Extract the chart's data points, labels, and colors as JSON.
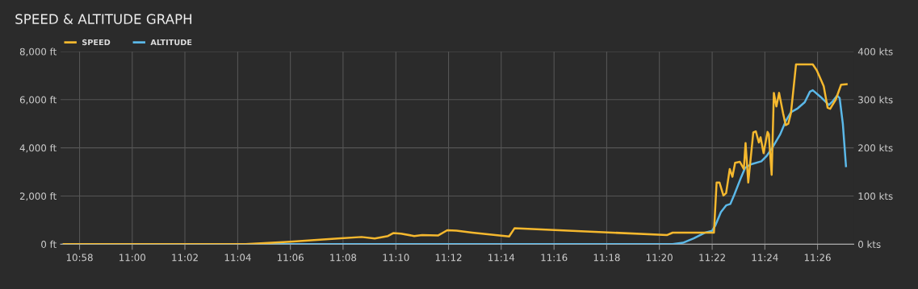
{
  "chart_data": {
    "type": "line",
    "title": "SPEED & ALTITUDE GRAPH",
    "legend": "top left",
    "grid": true,
    "xlim": [
      10.9547,
      11.4562
    ],
    "xticks": [
      {
        "value": 10.9667,
        "label": "10:58"
      },
      {
        "value": 11.0,
        "label": "11:00"
      },
      {
        "value": 11.0333,
        "label": "11:02"
      },
      {
        "value": 11.0667,
        "label": "11:04"
      },
      {
        "value": 11.1,
        "label": "11:06"
      },
      {
        "value": 11.1333,
        "label": "11:08"
      },
      {
        "value": 11.1667,
        "label": "11:10"
      },
      {
        "value": 11.2,
        "label": "11:12"
      },
      {
        "value": 11.2333,
        "label": "11:14"
      },
      {
        "value": 11.2667,
        "label": "11:16"
      },
      {
        "value": 11.3,
        "label": "11:18"
      },
      {
        "value": 11.3333,
        "label": "11:20"
      },
      {
        "value": 11.3667,
        "label": "11:22"
      },
      {
        "value": 11.4,
        "label": "11:24"
      },
      {
        "value": 11.4333,
        "label": "11:26"
      }
    ],
    "ylim": [
      0,
      8000
    ],
    "yticks": [
      {
        "value": 0,
        "label": "0 ft"
      },
      {
        "value": 2000,
        "label": "2,000 ft"
      },
      {
        "value": 4000,
        "label": "4,000 ft"
      },
      {
        "value": 6000,
        "label": "6,000 ft"
      },
      {
        "value": 8000,
        "label": "8,000 ft"
      }
    ],
    "y2lim": [
      0,
      400
    ],
    "y2ticks": [
      {
        "value": 0,
        "label": "0 kts"
      },
      {
        "value": 100,
        "label": "100 kts"
      },
      {
        "value": 200,
        "label": "200 kts"
      },
      {
        "value": 300,
        "label": "300 kts"
      },
      {
        "value": 400,
        "label": "400 kts"
      }
    ],
    "series": [
      {
        "name": "SPEED",
        "color": "#f5b82e",
        "axis": "y2",
        "x": [
          10.9567,
          11.0717,
          11.1,
          11.13,
          11.145,
          11.1533,
          11.1617,
          11.165,
          11.17,
          11.1783,
          11.1833,
          11.1933,
          11.1992,
          11.205,
          11.215,
          11.2383,
          11.2417,
          11.3383,
          11.3417,
          11.3667,
          11.3678,
          11.3695,
          11.3713,
          11.3738,
          11.3755,
          11.3778,
          11.3795,
          11.3812,
          11.3842,
          11.3867,
          11.3878,
          11.3895,
          11.3927,
          11.3943,
          11.3962,
          11.3973,
          11.3992,
          11.4017,
          11.4025,
          11.4043,
          11.4057,
          11.4073,
          11.409,
          11.4115,
          11.4132,
          11.4148,
          11.4165,
          11.4197,
          11.4303,
          11.4328,
          11.4372,
          11.4397,
          11.4413,
          11.4448,
          11.4482,
          11.4517
        ],
        "values": [
          0,
          0,
          5,
          12,
          15,
          12,
          17,
          23,
          22,
          17,
          19,
          18,
          29,
          28,
          24,
          16,
          33,
          19,
          24,
          24,
          24,
          128,
          128,
          101,
          106,
          156,
          140,
          169,
          171,
          156,
          210,
          128,
          232,
          234,
          211,
          222,
          189,
          233,
          228,
          144,
          314,
          286,
          314,
          272,
          247,
          250,
          272,
          373,
          373,
          361,
          328,
          283,
          281,
          300,
          331,
          332
        ]
      },
      {
        "name": "ALTITUDE",
        "color": "#5bb8e8",
        "axis": "y",
        "x": [
          10.9567,
          11.3417,
          11.3482,
          11.355,
          11.3618,
          11.3667,
          11.3687,
          11.3722,
          11.3755,
          11.3782,
          11.3807,
          11.385,
          11.3875,
          11.391,
          11.3978,
          11.4012,
          11.4047,
          11.4097,
          11.4132,
          11.4165,
          11.4208,
          11.4252,
          11.4285,
          11.4303,
          11.4353,
          11.4405,
          11.443,
          11.4457,
          11.4473,
          11.4493,
          11.4513
        ],
        "values": [
          0,
          0,
          60,
          240,
          470,
          560,
          780,
          1330,
          1610,
          1670,
          2060,
          2780,
          3170,
          3310,
          3440,
          3670,
          4000,
          4560,
          5110,
          5480,
          5640,
          5890,
          6330,
          6390,
          6110,
          5780,
          5940,
          6170,
          6060,
          5000,
          3240
        ]
      }
    ]
  }
}
